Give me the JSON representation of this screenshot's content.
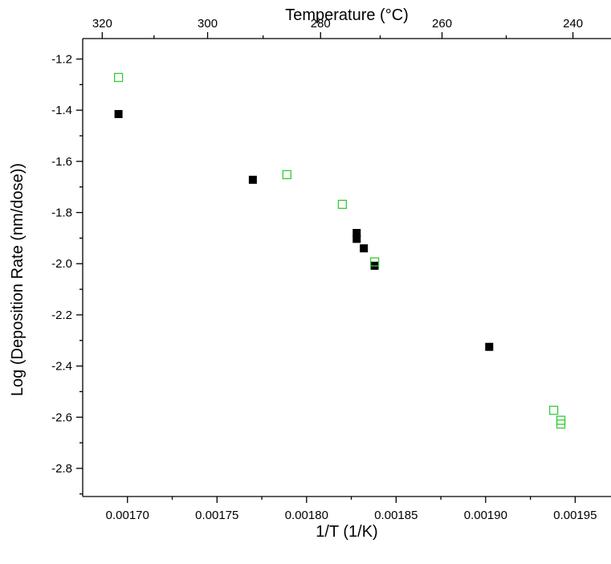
{
  "chart_data": {
    "type": "scatter",
    "title": "",
    "xlabel": "1/T (1/K)",
    "ylabel": "Log (Deposition Rate (nm/dose))",
    "top_xlabel": "Temperature (°C)",
    "xlim": [
      0.001675,
      0.00197
    ],
    "ylim": [
      -2.91,
      -1.12
    ],
    "x_ticks": [
      0.0017,
      0.00175,
      0.0018,
      0.00185,
      0.0019,
      0.00195
    ],
    "x_tick_labels": [
      "0.00170",
      "0.00175",
      "0.00180",
      "0.00185",
      "0.00190",
      "0.00195"
    ],
    "y_ticks": [
      -1.2,
      -1.4,
      -1.6,
      -1.8,
      -2.0,
      -2.2,
      -2.4,
      -2.6,
      -2.8
    ],
    "y_tick_labels": [
      "-1.2",
      "-1.4",
      "-1.6",
      "-1.8",
      "-2.0",
      "-2.2",
      "-2.4",
      "-2.6",
      "-2.8"
    ],
    "top_ticks_celsius": [
      320,
      300,
      280,
      260,
      240
    ],
    "top_tick_labels": [
      "320",
      "300",
      "280",
      "260",
      "240"
    ],
    "grid": false,
    "legend": "none",
    "series": [
      {
        "marker": "filled-square",
        "color": "#000000",
        "points": [
          {
            "x": 0.001695,
            "y": -1.415
          },
          {
            "x": 0.00177,
            "y": -1.672
          },
          {
            "x": 0.001828,
            "y": -1.88
          },
          {
            "x": 0.001828,
            "y": -1.903
          },
          {
            "x": 0.001832,
            "y": -1.94
          },
          {
            "x": 0.001838,
            "y": -2.008
          },
          {
            "x": 0.001902,
            "y": -2.325
          }
        ]
      },
      {
        "marker": "open-square",
        "color": "#33cc33",
        "points": [
          {
            "x": 0.001695,
            "y": -1.272
          },
          {
            "x": 0.001789,
            "y": -1.652
          },
          {
            "x": 0.00182,
            "y": -1.768
          },
          {
            "x": 0.001838,
            "y": -1.993
          },
          {
            "x": 0.001938,
            "y": -2.573
          },
          {
            "x": 0.001942,
            "y": -2.612
          },
          {
            "x": 0.001942,
            "y": -2.627
          }
        ]
      }
    ]
  }
}
